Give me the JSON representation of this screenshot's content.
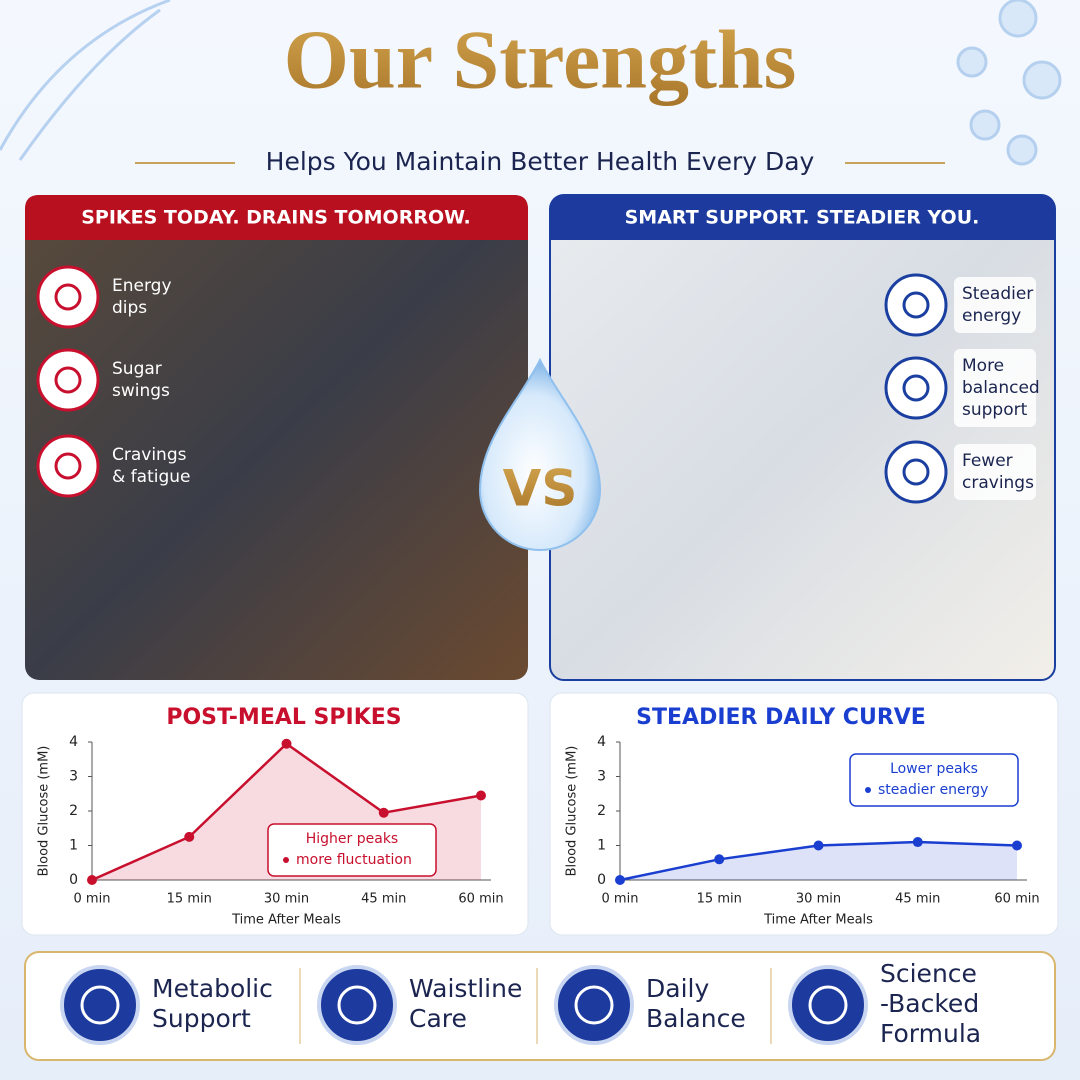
{
  "header": {
    "title": "Our Strengths",
    "subtitle": "Helps You Maintain Better Health Every Day"
  },
  "left_panel": {
    "heading": "SPIKES TODAY. DRAINS TOMORROW.",
    "items": [
      [
        "Energy",
        "dips"
      ],
      [
        "Sugar",
        "swings"
      ],
      [
        "Cravings",
        "& fatigue"
      ]
    ]
  },
  "right_panel": {
    "heading": "SMART SUPPORT. STEADIER YOU.",
    "items": [
      [
        "Steadier",
        "energy"
      ],
      [
        "More",
        "balanced",
        "support"
      ],
      [
        "Fewer",
        "cravings"
      ]
    ]
  },
  "vs": "VS",
  "chart_data": [
    {
      "type": "line",
      "title": "POST-MEAL SPIKES",
      "y_label": "Blood Glucose (mM)",
      "x_label": "Time After Meals",
      "categories": [
        "0 min",
        "15 min",
        "30 min",
        "45 min",
        "60 min"
      ],
      "series": [
        {
          "name": "Post-meal",
          "color": "#c8102e",
          "values": [
            0,
            1.25,
            3.95,
            1.95,
            2.45
          ]
        }
      ],
      "ylim": [
        0,
        4
      ],
      "yticks": [
        0,
        1,
        2,
        3,
        4
      ],
      "annotations": [
        "Higher peaks",
        "more fluctuation"
      ]
    },
    {
      "type": "line",
      "title": "STEADIER DAILY CURVE",
      "y_label": "Blood Glucose (mM)",
      "x_label": "Time After Meals",
      "categories": [
        "0 min",
        "15 min",
        "30 min",
        "45 min",
        "60 min"
      ],
      "series": [
        {
          "name": "Steadier",
          "color": "#1a3fd0",
          "values": [
            0,
            0.6,
            1.0,
            1.1,
            1.0
          ]
        }
      ],
      "ylim": [
        0,
        4
      ],
      "yticks": [
        0,
        1,
        2,
        3,
        4
      ],
      "annotations": [
        "Lower peaks",
        "steadier energy"
      ]
    }
  ],
  "benefits": [
    [
      "Metabolic",
      "Support"
    ],
    [
      "Waistline",
      "Care"
    ],
    [
      "Daily",
      "Balance"
    ],
    [
      "Science",
      "-Backed",
      "Formula"
    ]
  ]
}
